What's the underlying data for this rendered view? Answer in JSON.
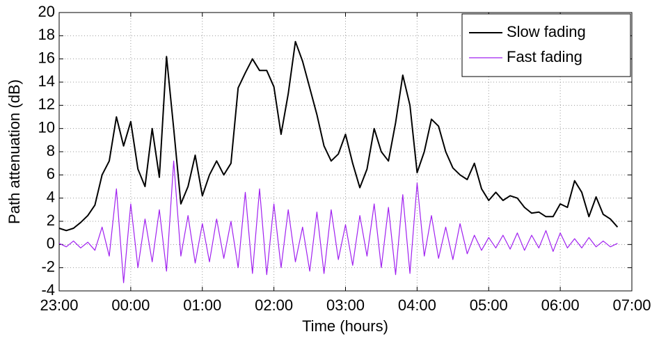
{
  "chart_data": {
    "type": "line",
    "xlabel": "Time (hours)",
    "ylabel": "Path attenuation (dB)",
    "x": [
      0,
      0.1,
      0.2,
      0.3,
      0.4,
      0.5,
      0.6,
      0.7,
      0.8,
      0.9,
      1,
      1.1,
      1.2,
      1.3,
      1.4,
      1.5,
      1.6,
      1.7,
      1.8,
      1.9,
      2,
      2.1,
      2.2,
      2.3,
      2.4,
      2.5,
      2.6,
      2.7,
      2.8,
      2.9,
      3,
      3.1,
      3.2,
      3.3,
      3.4,
      3.5,
      3.6,
      3.7,
      3.8,
      3.9,
      4,
      4.1,
      4.2,
      4.3,
      4.4,
      4.5,
      4.6,
      4.7,
      4.8,
      4.9,
      5,
      5.1,
      5.2,
      5.3,
      5.4,
      5.5,
      5.6,
      5.7,
      5.8,
      5.9,
      6,
      6.1,
      6.2,
      6.3,
      6.4,
      6.5,
      6.6,
      6.7,
      6.8,
      6.9,
      7,
      7.1,
      7.2,
      7.3,
      7.4,
      7.5,
      7.6,
      7.7,
      7.8
    ],
    "series": [
      {
        "name": "Slow fading",
        "color": "#000000",
        "values": [
          1.4,
          1.2,
          1.4,
          1.9,
          2.5,
          3.4,
          6.0,
          7.2,
          11.0,
          8.5,
          10.6,
          6.5,
          5.0,
          10.0,
          5.8,
          16.2,
          10.0,
          3.5,
          5.0,
          7.7,
          4.2,
          6.0,
          7.2,
          6.0,
          7.0,
          13.5,
          14.8,
          16.0,
          15.0,
          15.0,
          13.6,
          9.5,
          13.0,
          17.5,
          15.8,
          13.5,
          11.2,
          8.5,
          7.2,
          7.8,
          9.5,
          7.0,
          4.9,
          6.5,
          10.0,
          8.0,
          7.2,
          10.5,
          14.6,
          12.0,
          6.2,
          8.0,
          10.8,
          10.2,
          8.0,
          6.6,
          6.0,
          5.6,
          7.0,
          4.8,
          3.8,
          4.5,
          3.8,
          4.2,
          4.0,
          3.2,
          2.7,
          2.8,
          2.4,
          2.4,
          3.5,
          3.2,
          5.5,
          4.5,
          2.4,
          4.1,
          2.6,
          2.2,
          1.5
        ]
      },
      {
        "name": "Fast fading",
        "color": "#a020f0",
        "values": [
          0.1,
          -0.2,
          0.3,
          -0.3,
          0.2,
          -0.5,
          1.5,
          -1.0,
          4.8,
          -3.3,
          3.5,
          -2.0,
          2.2,
          -1.5,
          3.0,
          -2.3,
          7.2,
          -1.0,
          2.5,
          -1.6,
          1.8,
          -1.5,
          2.2,
          -1.2,
          2.0,
          -2.0,
          4.5,
          -2.5,
          4.8,
          -2.6,
          3.5,
          -2.0,
          3.0,
          -1.5,
          1.5,
          -2.3,
          2.8,
          -2.5,
          3.0,
          -1.3,
          1.7,
          -1.8,
          2.5,
          -1.0,
          3.5,
          -2.0,
          3.2,
          -2.6,
          4.3,
          -2.5,
          5.3,
          -1.0,
          2.5,
          -1.2,
          1.5,
          -1.3,
          1.8,
          -0.8,
          0.8,
          -0.5,
          0.6,
          -0.3,
          0.8,
          -0.4,
          1.0,
          -0.5,
          0.8,
          -0.3,
          1.2,
          -0.6,
          1.0,
          -0.3,
          0.5,
          -0.3,
          0.6,
          -0.2,
          0.3,
          -0.2,
          0.1
        ]
      }
    ],
    "xlim": [
      0,
      8
    ],
    "xticks": [
      {
        "value": 0,
        "label": "23:00"
      },
      {
        "value": 1,
        "label": "00:00"
      },
      {
        "value": 2,
        "label": "01:00"
      },
      {
        "value": 3,
        "label": "02:00"
      },
      {
        "value": 4,
        "label": "03:00"
      },
      {
        "value": 5,
        "label": "04:00"
      },
      {
        "value": 6,
        "label": "05:00"
      },
      {
        "value": 7,
        "label": "06:00"
      },
      {
        "value": 8,
        "label": "07:00"
      }
    ],
    "ylim": [
      -4,
      20
    ],
    "yticks": [
      -4,
      -2,
      0,
      2,
      4,
      6,
      8,
      10,
      12,
      14,
      16,
      18,
      20
    ],
    "grid": true,
    "legend": "upper right"
  }
}
